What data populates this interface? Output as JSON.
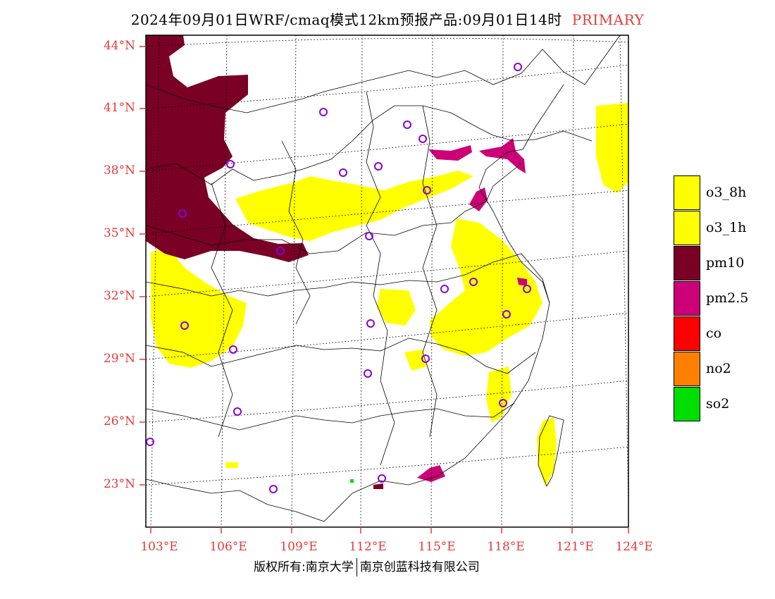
{
  "title": {
    "main": "2024年09月01日WRF/cmaq模式12km预报产品:09月01日14时",
    "tag": "PRIMARY"
  },
  "colors": {
    "label_red": "#e23b3b",
    "o3_8h": "#ffff00",
    "o3_1h": "#ffff00",
    "pm10": "#7a0026",
    "pm2_5": "#cc0077",
    "co": "#ff0000",
    "no2": "#ff8000",
    "so2": "#00dd00",
    "station_marker": "#8a00d4"
  },
  "map": {
    "lat_labels": [
      "44°N",
      "41°N",
      "38°N",
      "35°N",
      "32°N",
      "29°N",
      "26°N",
      "23°N"
    ],
    "lon_labels": [
      "103°E",
      "106°E",
      "109°E",
      "112°E",
      "115°E",
      "118°E",
      "121°E",
      "124°E"
    ],
    "lat_values": [
      44,
      41,
      38,
      35,
      32,
      29,
      26,
      23
    ],
    "lon_values": [
      103,
      106,
      109,
      112,
      115,
      118,
      121,
      124
    ]
  },
  "legend": [
    {
      "label": "o3_8h",
      "color": "#ffff00"
    },
    {
      "label": "o3_1h",
      "color": "#ffff00"
    },
    {
      "label": "pm10",
      "color": "#7a0026"
    },
    {
      "label": "pm2.5",
      "color": "#cc0077"
    },
    {
      "label": "co",
      "color": "#ff0000"
    },
    {
      "label": "no2",
      "color": "#ff8000"
    },
    {
      "label": "so2",
      "color": "#00dd00"
    }
  ],
  "footer": {
    "left": "版权所有:南京大学",
    "right": "南京创蓝科技有限公司"
  }
}
